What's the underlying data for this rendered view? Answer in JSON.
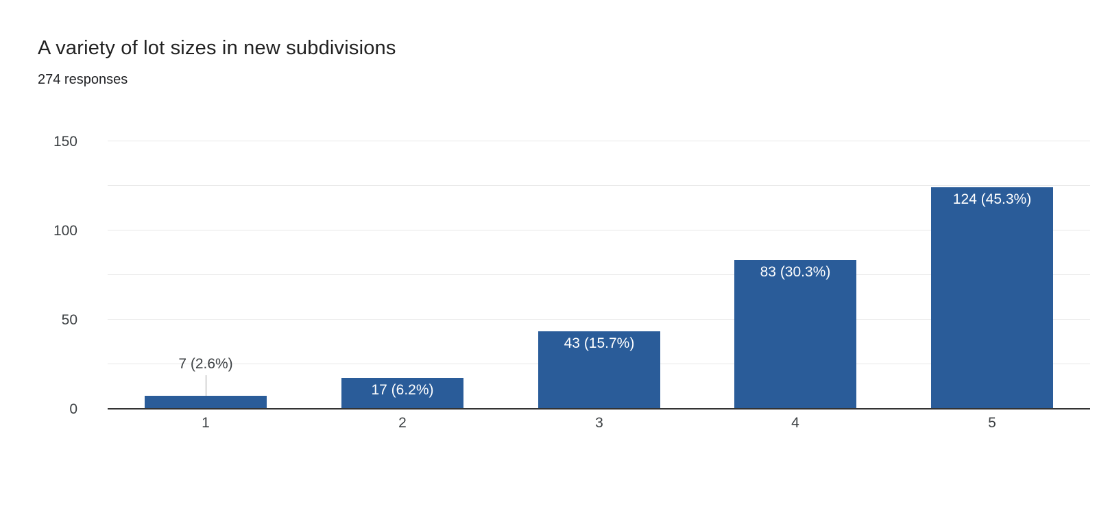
{
  "header": {
    "title": "A variety of lot sizes in new subdivisions",
    "subtitle": "274 responses"
  },
  "chart_data": {
    "type": "bar",
    "title": "A variety of lot sizes in new subdivisions",
    "subtitle": "274 responses",
    "categories": [
      "1",
      "2",
      "3",
      "4",
      "5"
    ],
    "values": [
      7,
      17,
      43,
      83,
      124
    ],
    "bar_labels": [
      "7 (2.6%)",
      "17 (6.2%)",
      "43 (15.7%)",
      "83 (30.3%)",
      "124 (45.3%)"
    ],
    "total_responses": 274,
    "xlabel": "",
    "ylabel": "",
    "ylim": [
      0,
      150
    ],
    "yticks": [
      0,
      50,
      100,
      150
    ],
    "grid_step": 25,
    "grid": "on",
    "legend": "none",
    "colors": {
      "bar": "#2a5c99",
      "label_inside": "#ffffff",
      "label_outside": "#3c4043",
      "gridline": "#e8e8e8",
      "baseline": "#333333",
      "axis_text": "#3c4043",
      "leader_line": "#9e9e9e"
    }
  }
}
